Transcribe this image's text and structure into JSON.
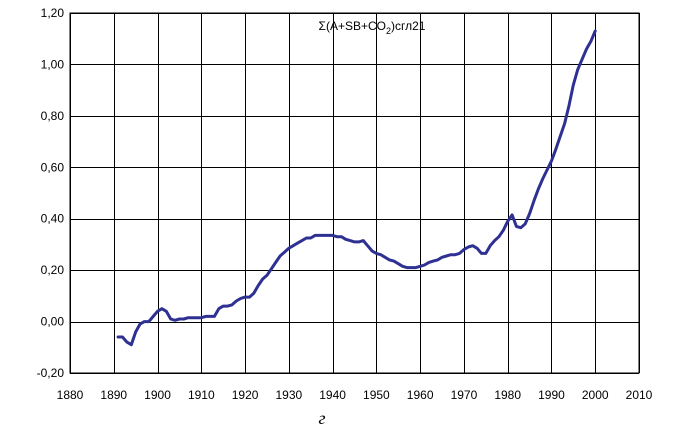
{
  "chart_data": {
    "type": "line",
    "title": "",
    "xlabel": "г",
    "ylabel": "",
    "xlim": [
      1880,
      2010
    ],
    "ylim": [
      -0.2,
      1.2
    ],
    "x_ticks": [
      1880,
      1890,
      1900,
      1910,
      1920,
      1930,
      1940,
      1950,
      1960,
      1970,
      1980,
      1990,
      2000,
      2010
    ],
    "x_tick_labels": [
      "1880",
      "1890",
      "1900",
      "1910",
      "1920",
      "1930",
      "1940",
      "1950",
      "1960",
      "1970",
      "1980",
      "1990",
      "2000",
      "2010"
    ],
    "y_ticks": [
      -0.2,
      0,
      0.2,
      0.4,
      0.6,
      0.8,
      1.0,
      1.2
    ],
    "y_tick_labels": [
      "-0,20",
      "0,00",
      "0,20",
      "0,40",
      "0,60",
      "0,80",
      "1,00",
      "1,20"
    ],
    "grid": true,
    "legend_position": "top-center",
    "series": [
      {
        "name": "Σ(A+SB+CO2)сгл21",
        "legend_parts": {
          "prefix": "Σ(A+SB+CO",
          "subscript": "2",
          "suffix": ")сгл21"
        },
        "color": "#2E3192",
        "x": [
          1891,
          1892,
          1893,
          1894,
          1895,
          1896,
          1897,
          1898,
          1899,
          1900,
          1901,
          1902,
          1903,
          1904,
          1905,
          1906,
          1907,
          1908,
          1909,
          1910,
          1911,
          1912,
          1913,
          1914,
          1915,
          1916,
          1917,
          1918,
          1919,
          1920,
          1921,
          1922,
          1923,
          1924,
          1925,
          1926,
          1927,
          1928,
          1929,
          1930,
          1931,
          1932,
          1933,
          1934,
          1935,
          1936,
          1937,
          1938,
          1939,
          1940,
          1941,
          1942,
          1943,
          1944,
          1945,
          1946,
          1947,
          1948,
          1949,
          1950,
          1951,
          1952,
          1953,
          1954,
          1955,
          1956,
          1957,
          1958,
          1959,
          1960,
          1961,
          1962,
          1963,
          1964,
          1965,
          1966,
          1967,
          1968,
          1969,
          1970,
          1971,
          1972,
          1973,
          1974,
          1975,
          1976,
          1977,
          1978,
          1979,
          1980,
          1981,
          1982,
          1983,
          1984,
          1985,
          1986,
          1987,
          1988,
          1989,
          1990,
          1991,
          1992,
          1993,
          1994,
          1995,
          1996,
          1997,
          1998,
          1999,
          2000
        ],
        "y": [
          -0.06,
          -0.06,
          -0.08,
          -0.09,
          -0.04,
          -0.01,
          0.0,
          0.0,
          0.02,
          0.04,
          0.05,
          0.04,
          0.01,
          0.005,
          0.01,
          0.01,
          0.015,
          0.015,
          0.015,
          0.015,
          0.02,
          0.02,
          0.02,
          0.05,
          0.06,
          0.06,
          0.065,
          0.08,
          0.09,
          0.095,
          0.095,
          0.11,
          0.14,
          0.165,
          0.18,
          0.205,
          0.23,
          0.255,
          0.27,
          0.285,
          0.295,
          0.305,
          0.315,
          0.325,
          0.325,
          0.335,
          0.335,
          0.335,
          0.335,
          0.335,
          0.33,
          0.33,
          0.32,
          0.315,
          0.31,
          0.31,
          0.315,
          0.295,
          0.275,
          0.265,
          0.26,
          0.25,
          0.24,
          0.235,
          0.225,
          0.215,
          0.21,
          0.21,
          0.21,
          0.215,
          0.22,
          0.23,
          0.235,
          0.24,
          0.25,
          0.255,
          0.26,
          0.26,
          0.265,
          0.28,
          0.29,
          0.295,
          0.285,
          0.265,
          0.265,
          0.295,
          0.315,
          0.33,
          0.355,
          0.39,
          0.415,
          0.37,
          0.365,
          0.38,
          0.42,
          0.47,
          0.515,
          0.555,
          0.59,
          0.625,
          0.67,
          0.72,
          0.77,
          0.84,
          0.92,
          0.98,
          1.02,
          1.06,
          1.09,
          1.13
        ]
      }
    ]
  }
}
